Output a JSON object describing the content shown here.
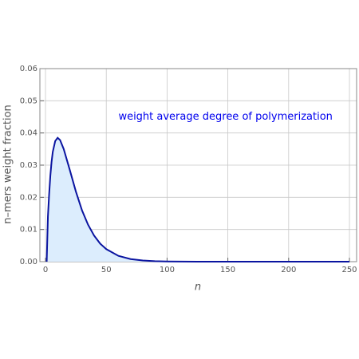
{
  "chart_data": {
    "type": "area",
    "xlabel": "n",
    "ylabel": "n–mers weight fraction",
    "annotation": "weight average degree of polymerization",
    "annotation_color": "#0000ee",
    "annotation_pos": [
      60,
      0.045
    ],
    "x": [
      1,
      2,
      3,
      4,
      5,
      6,
      8,
      10,
      12,
      15,
      20,
      25,
      30,
      35,
      40,
      45,
      50,
      60,
      70,
      80,
      90,
      100,
      125,
      150,
      175,
      200,
      225,
      250
    ],
    "series": [
      {
        "color": "#0a14a0",
        "fill": "#dcedfd",
        "values": [
          0,
          0.014,
          0.0209,
          0.0267,
          0.031,
          0.0341,
          0.0375,
          0.0385,
          0.0378,
          0.035,
          0.0285,
          0.0218,
          0.016,
          0.0115,
          0.0081,
          0.0056,
          0.0039,
          0.0018,
          0.0008,
          0.00036,
          0.00016,
          7e-05,
          0,
          0,
          0,
          0,
          0,
          0
        ]
      }
    ],
    "xlim": [
      -4.6,
      255.9
    ],
    "ylim": [
      0,
      0.06
    ],
    "xticks": [
      0,
      50,
      100,
      150,
      200,
      250
    ],
    "yticks": [
      {
        "value": 0,
        "label": "0.00"
      },
      0.01,
      0.02,
      0.03,
      0.04,
      0.05,
      0.06
    ],
    "grid": true
  }
}
